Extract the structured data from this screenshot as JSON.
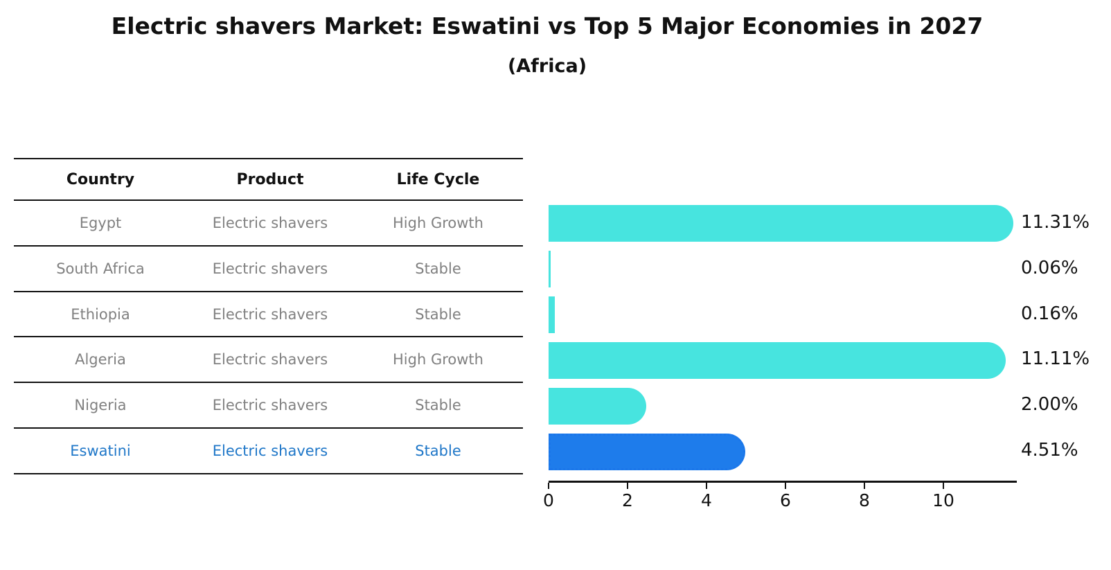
{
  "title": "Electric shavers Market: Eswatini vs Top 5 Major Economies in 2027",
  "subtitle": "(Africa)",
  "table": {
    "headers": [
      "Country",
      "Product",
      "Life Cycle"
    ],
    "rows": [
      {
        "country": "Egypt",
        "product": "Electric shavers",
        "life_cycle": "High Growth",
        "highlight": false
      },
      {
        "country": "South Africa",
        "product": "Electric shavers",
        "life_cycle": "Stable",
        "highlight": false
      },
      {
        "country": "Ethiopia",
        "product": "Electric shavers",
        "life_cycle": "Stable",
        "highlight": false
      },
      {
        "country": "Algeria",
        "product": "Electric shavers",
        "life_cycle": "High Growth",
        "highlight": false
      },
      {
        "country": "Nigeria",
        "product": "Electric shavers",
        "life_cycle": "Stable",
        "highlight": false
      },
      {
        "country": "Eswatini",
        "product": "Electric shavers",
        "life_cycle": "Stable",
        "highlight": true
      }
    ]
  },
  "chart_data": {
    "type": "bar",
    "orientation": "horizontal",
    "title": "Electric shavers Market: Eswatini vs Top 5 Major Economies in 2027",
    "subtitle": "(Africa)",
    "categories": [
      "Egypt",
      "South Africa",
      "Ethiopia",
      "Algeria",
      "Nigeria",
      "Eswatini"
    ],
    "values": [
      11.31,
      0.06,
      0.16,
      11.11,
      2.0,
      4.51
    ],
    "value_labels": [
      "11.31%",
      "0.06%",
      "0.16%",
      "11.11%",
      "2.00%",
      "4.51%"
    ],
    "x_ticks": [
      0,
      2,
      4,
      6,
      8,
      10
    ],
    "xlim": [
      0,
      11.86
    ],
    "grid": false,
    "legend": false,
    "highlight_category": "Eswatini",
    "colors": {
      "bar_default": "#47E4DF",
      "bar_highlight": "#1E7CEB",
      "highlight_text": "#1F77C8",
      "row_text": "#808080",
      "axis_text": "#111111"
    }
  }
}
